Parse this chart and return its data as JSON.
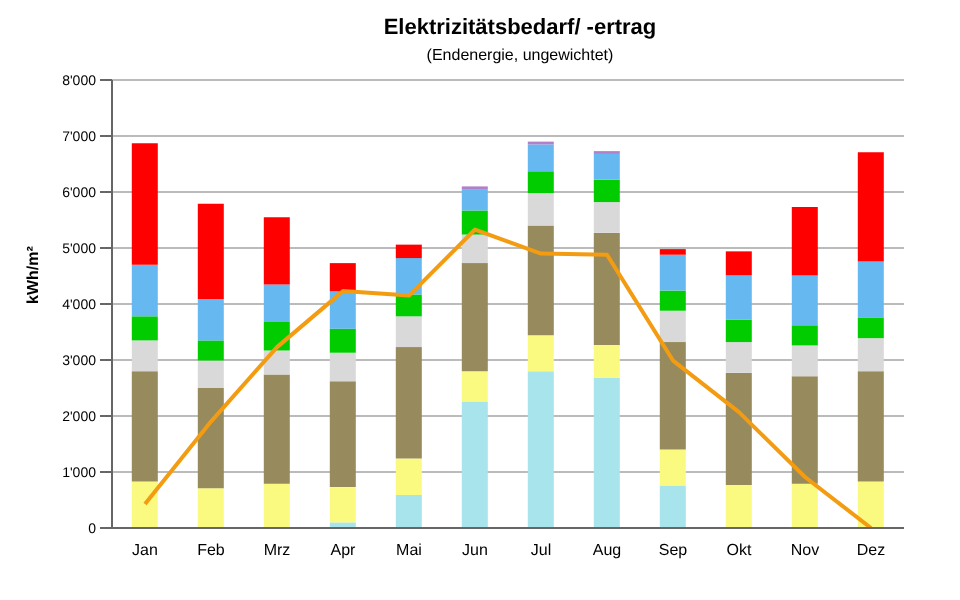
{
  "chart_data": {
    "type": "bar",
    "title": "Elektrizitätsbedarf/  -ertrag",
    "subtitle": "(Endenergie, ungewichtet)",
    "ylabel": "kWh/m²",
    "categories": [
      "Jan",
      "Feb",
      "Mrz",
      "Apr",
      "Mai",
      "Jun",
      "Jul",
      "Aug",
      "Sep",
      "Okt",
      "Nov",
      "Dez"
    ],
    "stacked": true,
    "grid": "y",
    "ylim": [
      0,
      8000
    ],
    "yticks": [
      0,
      {
        "value": 1000,
        "label": "1'000"
      },
      {
        "value": 2000,
        "label": "2'000"
      },
      {
        "value": 3000,
        "label": "3'000"
      },
      {
        "value": 4000,
        "label": "4'000"
      },
      {
        "value": 5000,
        "label": "5'000"
      },
      {
        "value": 6000,
        "label": "6'000"
      },
      {
        "value": 7000,
        "label": "7'000"
      },
      {
        "value": 8000,
        "label": "8'000"
      }
    ],
    "series": [
      {
        "color": "#a8e4ec",
        "values": [
          0,
          0,
          0,
          100,
          590,
          2260,
          2800,
          2680,
          760,
          0,
          0,
          0
        ]
      },
      {
        "color": "#fafa80",
        "values": [
          830,
          710,
          790,
          630,
          650,
          540,
          640,
          590,
          640,
          770,
          790,
          830
        ]
      },
      {
        "color": "#978a5c",
        "values": [
          1970,
          1790,
          1950,
          1890,
          1990,
          1930,
          1960,
          2000,
          1920,
          2000,
          1920,
          1970
        ]
      },
      {
        "color": "#d9d9d9",
        "values": [
          550,
          490,
          430,
          510,
          550,
          510,
          580,
          550,
          560,
          550,
          550,
          590
        ]
      },
      {
        "color": "#00cc00",
        "values": [
          430,
          360,
          510,
          430,
          390,
          430,
          390,
          400,
          360,
          400,
          360,
          370
        ]
      },
      {
        "color": "#66b8f0",
        "values": [
          920,
          740,
          670,
          670,
          650,
          370,
          480,
          460,
          640,
          790,
          890,
          1000
        ]
      },
      {
        "color": "#b080c8",
        "values": [
          0,
          0,
          0,
          0,
          0,
          60,
          50,
          50,
          0,
          0,
          0,
          0
        ]
      },
      {
        "color": "#ff0000",
        "values": [
          2170,
          1700,
          1200,
          500,
          240,
          0,
          0,
          0,
          100,
          430,
          1220,
          1950
        ]
      },
      {
        "type": "line",
        "color": "#f39c12",
        "values": [
          430,
          1900,
          3230,
          4230,
          4150,
          5330,
          4900,
          4880,
          2990,
          2070,
          910,
          0
        ]
      }
    ]
  }
}
